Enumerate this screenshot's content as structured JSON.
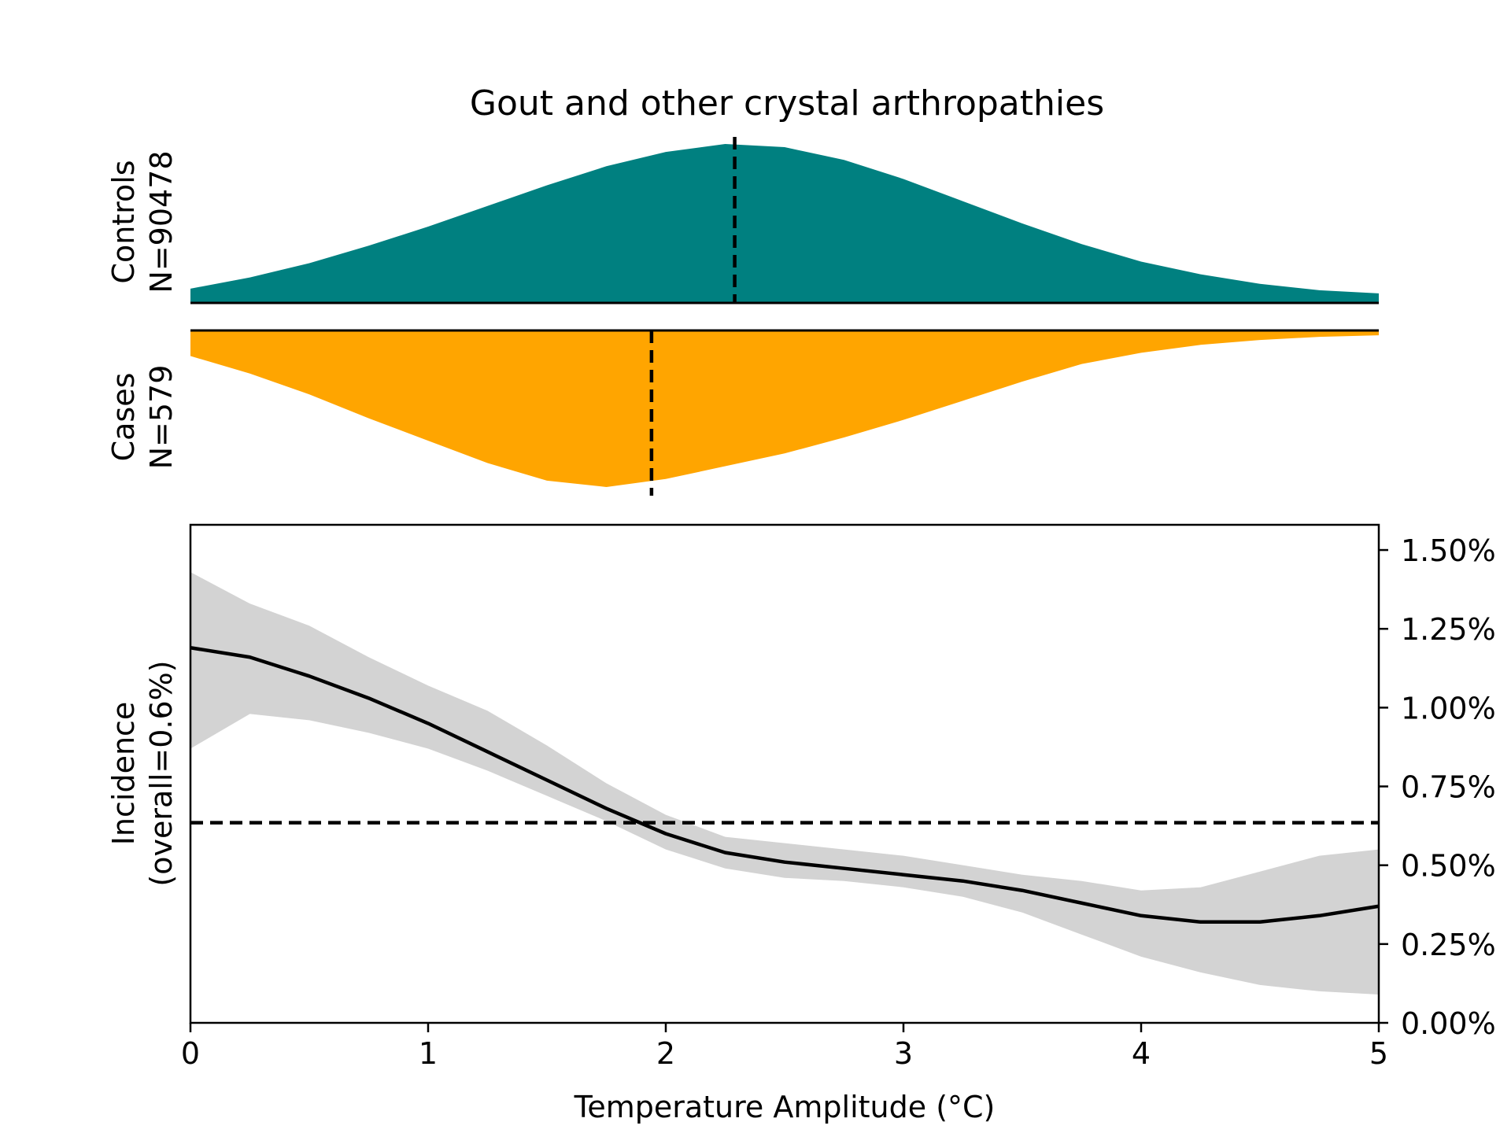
{
  "title": "Gout and other crystal arthropathies",
  "colors": {
    "controls": "#008080",
    "cases": "#FFA500",
    "band": "#d3d3d3",
    "line": "#000000"
  },
  "chart_data": [
    {
      "type": "area",
      "panel": "controls-density",
      "ylabel_line1": "Controls",
      "ylabel_line2": "N=90478",
      "x": [
        0,
        0.25,
        0.5,
        0.75,
        1.0,
        1.25,
        1.5,
        1.75,
        2.0,
        2.25,
        2.5,
        2.75,
        3.0,
        3.25,
        3.5,
        3.75,
        4.0,
        4.25,
        4.5,
        4.75,
        5.0
      ],
      "density": [
        0.09,
        0.16,
        0.25,
        0.36,
        0.48,
        0.61,
        0.74,
        0.86,
        0.95,
        1.0,
        0.98,
        0.9,
        0.78,
        0.64,
        0.5,
        0.37,
        0.26,
        0.18,
        0.12,
        0.08,
        0.06
      ],
      "median": 2.29
    },
    {
      "type": "area",
      "panel": "cases-density",
      "ylabel_line1": "Cases",
      "ylabel_line2": "N=579",
      "x": [
        0,
        0.25,
        0.5,
        0.75,
        1.0,
        1.25,
        1.5,
        1.75,
        2.0,
        2.25,
        2.5,
        2.75,
        3.0,
        3.25,
        3.5,
        3.75,
        4.0,
        4.25,
        4.5,
        4.75,
        5.0
      ],
      "density": [
        0.84,
        0.73,
        0.6,
        0.45,
        0.31,
        0.17,
        0.06,
        0.02,
        0.07,
        0.15,
        0.23,
        0.33,
        0.44,
        0.56,
        0.68,
        0.79,
        0.86,
        0.91,
        0.94,
        0.96,
        0.97
      ],
      "median": 1.94
    },
    {
      "type": "line",
      "panel": "incidence",
      "xlabel": "Temperature Amplitude (°C)",
      "ylabel_line1": "Incidence",
      "ylabel_line2": "(overall=0.6%)",
      "xlim": [
        0,
        5
      ],
      "ylim": [
        0,
        1.58
      ],
      "x_ticks": [
        "0",
        "1",
        "2",
        "3",
        "4",
        "5"
      ],
      "y_ticks": [
        {
          "value": 0.0,
          "label": "0.00%"
        },
        {
          "value": 0.25,
          "label": "0.25%"
        },
        {
          "value": 0.5,
          "label": "0.50%"
        },
        {
          "value": 0.75,
          "label": "0.75%"
        },
        {
          "value": 1.0,
          "label": "1.00%"
        },
        {
          "value": 1.25,
          "label": "1.25%"
        },
        {
          "value": 1.5,
          "label": "1.50%"
        }
      ],
      "overall": 0.635,
      "x": [
        0,
        0.25,
        0.5,
        0.75,
        1.0,
        1.25,
        1.5,
        1.75,
        2.0,
        2.25,
        2.5,
        2.75,
        3.0,
        3.25,
        3.5,
        3.75,
        4.0,
        4.25,
        4.5,
        4.75,
        5.0
      ],
      "y": [
        1.19,
        1.16,
        1.1,
        1.03,
        0.95,
        0.86,
        0.77,
        0.68,
        0.6,
        0.54,
        0.51,
        0.49,
        0.47,
        0.45,
        0.42,
        0.38,
        0.34,
        0.32,
        0.32,
        0.34,
        0.37
      ],
      "ci_lower": [
        0.87,
        0.98,
        0.96,
        0.92,
        0.87,
        0.8,
        0.72,
        0.64,
        0.55,
        0.49,
        0.46,
        0.45,
        0.43,
        0.4,
        0.35,
        0.28,
        0.21,
        0.16,
        0.12,
        0.1,
        0.09
      ],
      "ci_upper": [
        1.43,
        1.33,
        1.26,
        1.16,
        1.07,
        0.99,
        0.88,
        0.76,
        0.66,
        0.59,
        0.57,
        0.55,
        0.53,
        0.5,
        0.47,
        0.45,
        0.42,
        0.43,
        0.48,
        0.53,
        0.55
      ]
    }
  ]
}
